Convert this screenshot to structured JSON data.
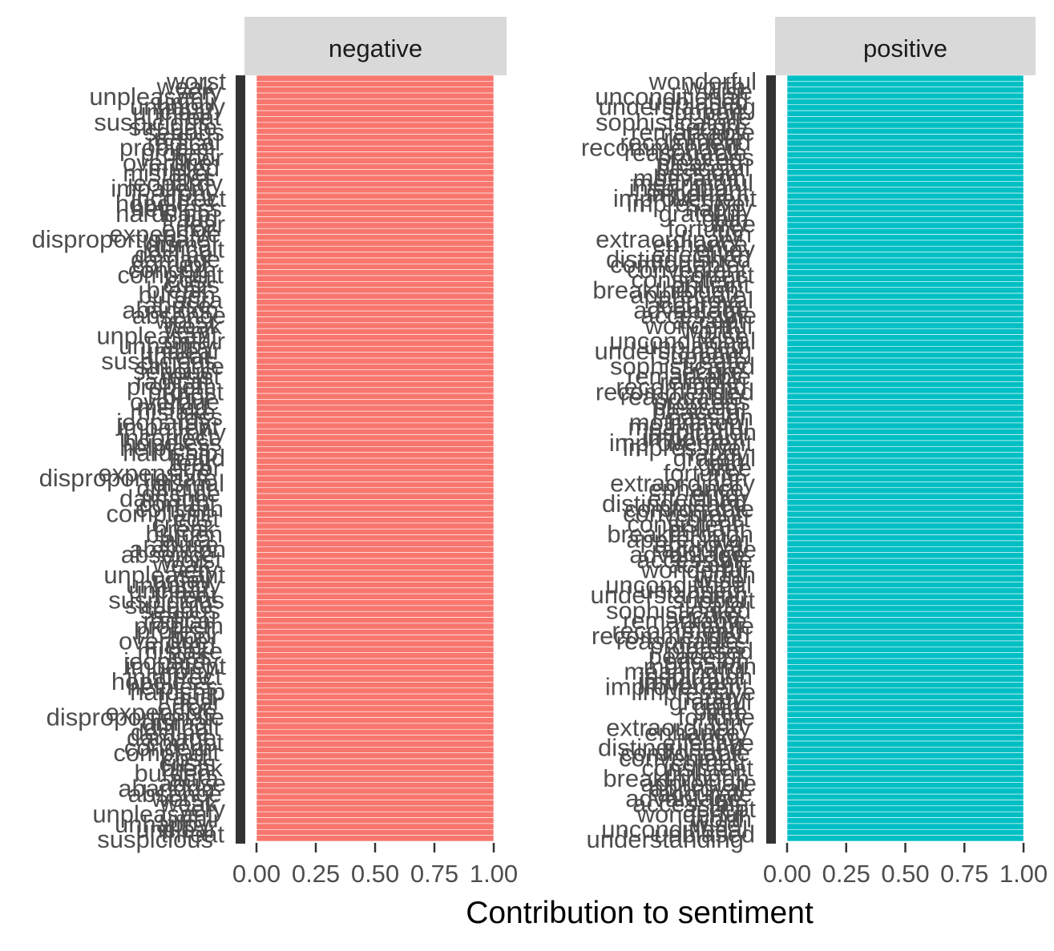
{
  "chart_data": {
    "type": "bar",
    "orientation": "horizontal",
    "xlabel": "Contribution to sentiment",
    "ylabel": "",
    "xlim": [
      0,
      1
    ],
    "x_ticks": [
      "0.00",
      "0.25",
      "0.50",
      "0.75",
      "1.00"
    ],
    "grid": false,
    "legend": "none",
    "panels": [
      {
        "facet": "negative",
        "color": "#F8766D",
        "bar_count": 130,
        "bar_value": 1.0,
        "legible_words": [
          "worst",
          "weak",
          "very",
          "unpleasant",
          "unfair",
          "unhappy",
          "unclear",
          "threat",
          "suspicious",
          "struggle",
          "serious",
          "resist",
          "radical",
          "problem",
          "protest",
          "poor",
          "overdue",
          "misled",
          "mistake",
          "loss",
          "jeopardy",
          "impatient",
          "irony",
          "incorrect",
          "hopeless",
          "helpless",
          "hardship",
          "fraud",
          "fear",
          "error",
          "expensive",
          "disproportionate",
          "dismal",
          "difficult",
          "decline",
          "damage",
          "corrupt",
          "concern",
          "complaint",
          "cost",
          "crisis",
          "break",
          "burden",
          "aura",
          "abuse",
          "abandon",
          "absence"
        ]
      },
      {
        "facet": "positive",
        "color": "#00BFC4",
        "bar_count": 130,
        "bar_value": 1.0,
        "legible_words": [
          "wonderful",
          "worth",
          "wise",
          "unconditional",
          "unbiased",
          "understanding",
          "support",
          "safe",
          "sophisticated",
          "secure",
          "remarkable",
          "reliable",
          "recommend",
          "recommended",
          "reasonable",
          "progress",
          "pleased",
          "peaceful",
          "passion",
          "motivation",
          "meaningful",
          "inspiration",
          "important",
          "improvement",
          "impressive",
          "happy",
          "grateful",
          "gain",
          "free",
          "fortune",
          "fun",
          "extraordinary",
          "enhance",
          "enjoy",
          "effective",
          "distinguished",
          "comfortable",
          "convenient",
          "correct",
          "consistent",
          "brilliant",
          "breakthrough",
          "appreciate",
          "approval",
          "accurate",
          "advantage",
          "accessible",
          "accept"
        ]
      }
    ]
  }
}
